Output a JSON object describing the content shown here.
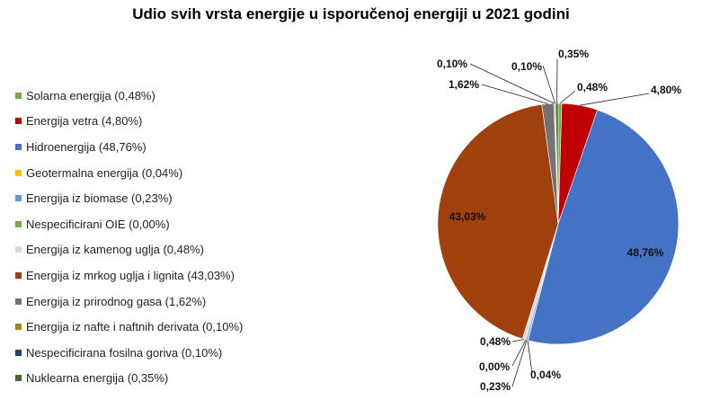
{
  "chart_data": {
    "type": "pie",
    "title": "Udio svih vrsta energije u isporučenoj energiji u 2021 godini",
    "legend_position": "left",
    "slices": [
      {
        "name": "Solarna energija",
        "legend": "Solarna energija (0,48%)",
        "value": 0.48,
        "label": "0,48%",
        "color": "#70ad47"
      },
      {
        "name": "Energija vetra",
        "legend": "Energija vetra (4,80%)",
        "value": 4.8,
        "label": "4,80%",
        "color": "#c00000"
      },
      {
        "name": "Hidroenergija",
        "legend": "Hidroenergija (48,76%)",
        "value": 48.76,
        "label": "48,76%",
        "color": "#4472c4"
      },
      {
        "name": "Geotermalna energija",
        "legend": "Geotermalna energija (0,04%)",
        "value": 0.04,
        "label": "0,04%",
        "color": "#ffc000"
      },
      {
        "name": "Energija iz biomase",
        "legend": "Energija iz biomase (0,23%)",
        "value": 0.23,
        "label": "0,23%",
        "color": "#5b9bd5"
      },
      {
        "name": "Nespecificirani OIE",
        "legend": "Nespecificirani OIE (0,00%)",
        "value": 0.0,
        "label": "0,00%",
        "color": "#70ad47"
      },
      {
        "name": "Energija iz kamenog uglja",
        "legend": "Energija iz kamenog uglja (0,48%)",
        "value": 0.48,
        "label": "0,48%",
        "color": "#d9d9d9"
      },
      {
        "name": "Energija iz mrkog uglja i lignita",
        "legend": "Energija iz mrkog uglja i lignita (43,03%)",
        "value": 43.03,
        "label": "43,03%",
        "color": "#a0400c"
      },
      {
        "name": "Energija iz prirodnog gasa",
        "legend": "Energija iz prirodnog gasa (1,62%)",
        "value": 1.62,
        "label": "1,62%",
        "color": "#767171"
      },
      {
        "name": "Energija iz nafte i naftnih derivata",
        "legend": "Energija iz nafte i naftnih derivata (0,10%)",
        "value": 0.1,
        "label": "0,10%",
        "color": "#9c8a1d"
      },
      {
        "name": "Nespecificirana fosilna goriva",
        "legend": "Nespecificirana fosilna goriva (0,10%)",
        "value": 0.1,
        "label": "0,10%",
        "color": "#264478"
      },
      {
        "name": "Nuklearna energija",
        "legend": "Nuklearna energija (0,35%)",
        "value": 0.35,
        "label": "0,35%",
        "color": "#43682b"
      }
    ]
  }
}
